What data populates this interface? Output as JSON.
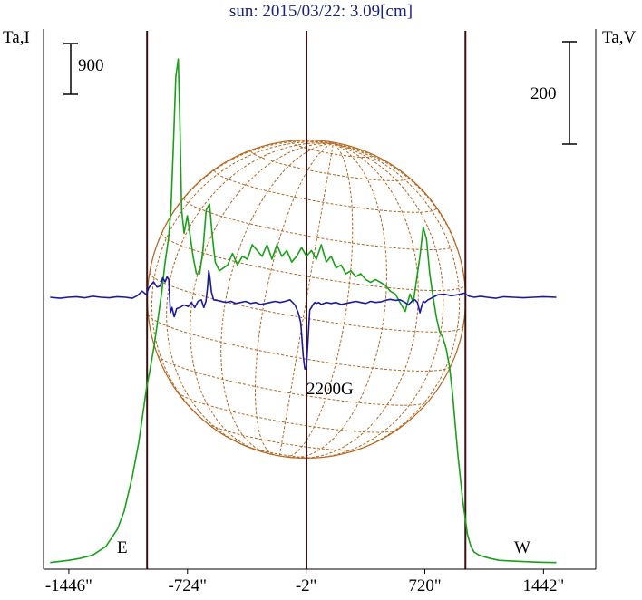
{
  "title": "sun: 2015/03/22: 3.09[cm]",
  "left_axis_label": "Ta,I",
  "right_axis_label": "Ta,V",
  "left_scale_label": "900",
  "right_scale_label": "200",
  "annotation": "2200G",
  "east_label": "E",
  "west_label": "W",
  "x_ticks": [
    "-1446\"",
    "-724\"",
    "-2\"",
    "720\"",
    "1442\""
  ],
  "colors": {
    "stokes_i": "#1aa01a",
    "stokes_v": "#1a1aa0",
    "disk": "#b5651d",
    "limb_lines": "#3a1010",
    "title": "#1a237e"
  },
  "chart_data": {
    "type": "line",
    "title": "sun: 2015/03/22: 3.09[cm]",
    "xlim": [
      -1600,
      1760
    ],
    "x_tick_values": [
      -1446,
      -724,
      -2,
      720,
      1442
    ],
    "limb_positions": [
      -970,
      967
    ],
    "disk_radius_arcsec": 968,
    "series": [
      {
        "name": "Ta,I",
        "scale_bar": 900,
        "x": [
          -1560,
          -1446,
          -1380,
          -1300,
          -1220,
          -1150,
          -1110,
          -1060,
          -1020,
          -990,
          -975,
          -955,
          -930,
          -905,
          -880,
          -860,
          -840,
          -825,
          -810,
          -795,
          -780,
          -770,
          -760,
          -745,
          -725,
          -705,
          -690,
          -670,
          -650,
          -630,
          -610,
          -590,
          -575,
          -555,
          -530,
          -505,
          -480,
          -450,
          -420,
          -390,
          -360,
          -330,
          -300,
          -270,
          -240,
          -210,
          -180,
          -150,
          -120,
          -90,
          -60,
          -30,
          0,
          30,
          60,
          90,
          120,
          150,
          180,
          210,
          240,
          270,
          300,
          330,
          360,
          390,
          420,
          450,
          480,
          510,
          540,
          570,
          600,
          630,
          650,
          670,
          690,
          710,
          730,
          750,
          770,
          790,
          810,
          830,
          850,
          870,
          890,
          905,
          920,
          935,
          950,
          965,
          980,
          1000,
          1020,
          1050,
          1080,
          1120,
          1170,
          1230,
          1300,
          1380,
          1442,
          1520
        ],
        "y": [
          20,
          60,
          90,
          150,
          300,
          600,
          900,
          1500,
          2100,
          2700,
          3000,
          3300,
          3700,
          4200,
          4700,
          5200,
          5600,
          6100,
          7200,
          8400,
          8700,
          7600,
          6100,
          5700,
          6000,
          5600,
          5300,
          5000,
          5000,
          5400,
          6100,
          6200,
          5700,
          5200,
          5050,
          5100,
          5150,
          5350,
          5150,
          5300,
          5250,
          5500,
          5400,
          5300,
          5500,
          5250,
          5500,
          5300,
          5400,
          5200,
          5300,
          5450,
          5300,
          5400,
          5250,
          5500,
          5200,
          5300,
          5100,
          5150,
          5000,
          5050,
          4950,
          5000,
          4900,
          4850,
          4900,
          4850,
          4800,
          4700,
          4650,
          4500,
          4350,
          4650,
          4500,
          4900,
          5300,
          5800,
          5600,
          5000,
          4600,
          4250,
          4000,
          3900,
          3700,
          3400,
          2900,
          2400,
          1900,
          1500,
          1100,
          800,
          500,
          300,
          200,
          150,
          120,
          90,
          60,
          50,
          40,
          30,
          25,
          20
        ]
      },
      {
        "name": "Ta,V",
        "scale_bar": 200,
        "x": [
          -1560,
          -1500,
          -1450,
          -1400,
          -1350,
          -1300,
          -1250,
          -1200,
          -1150,
          -1100,
          -1060,
          -1030,
          -1000,
          -975,
          -960,
          -945,
          -930,
          -910,
          -890,
          -875,
          -860,
          -848,
          -838,
          -828,
          -818,
          -805,
          -790,
          -770,
          -745,
          -720,
          -700,
          -680,
          -660,
          -640,
          -625,
          -612,
          -602,
          -595,
          -588,
          -578,
          -565,
          -545,
          -520,
          -490,
          -460,
          -430,
          -400,
          -370,
          -340,
          -310,
          -280,
          -250,
          -220,
          -190,
          -160,
          -130,
          -100,
          -70,
          -50,
          -35,
          -20,
          -10,
          0,
          10,
          20,
          30,
          40,
          50,
          60,
          75,
          90,
          120,
          150,
          180,
          210,
          240,
          270,
          300,
          330,
          360,
          390,
          420,
          450,
          480,
          510,
          540,
          570,
          600,
          620,
          640,
          660,
          675,
          690,
          700,
          710,
          720,
          740,
          770,
          800,
          840,
          880,
          920,
          960,
          990,
          1020,
          1060,
          1100,
          1150,
          1200,
          1260,
          1320,
          1380,
          1442,
          1520
        ],
        "y": [
          0,
          -2,
          0,
          1,
          -1,
          2,
          0,
          -1,
          1,
          0,
          -2,
          3,
          12,
          5,
          18,
          25,
          30,
          20,
          22,
          38,
          30,
          40,
          35,
          -30,
          -20,
          -38,
          -22,
          -20,
          -15,
          -18,
          -10,
          -20,
          -8,
          -5,
          -20,
          -8,
          20,
          52,
          40,
          10,
          -5,
          -6,
          -8,
          -10,
          -8,
          -12,
          -10,
          -8,
          -12,
          -10,
          -14,
          -12,
          -10,
          -8,
          -10,
          -8,
          -5,
          -15,
          -30,
          -50,
          -115,
          -140,
          -135,
          -80,
          -25,
          -20,
          -14,
          -10,
          -12,
          -10,
          -14,
          -10,
          -12,
          -10,
          -14,
          -12,
          -10,
          -8,
          -10,
          -12,
          -8,
          -10,
          -9,
          -6,
          -4,
          -6,
          -5,
          -10,
          -15,
          -8,
          -5,
          -10,
          -30,
          -18,
          -8,
          -10,
          -5,
          0,
          5,
          6,
          3,
          5,
          8,
          2,
          0,
          2,
          0,
          -2,
          1,
          0,
          -1,
          0,
          1,
          0
        ]
      }
    ]
  }
}
